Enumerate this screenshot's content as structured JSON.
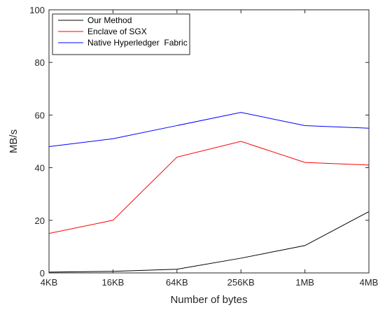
{
  "chart_data": {
    "type": "line",
    "categories": [
      "4KB",
      "16KB",
      "64KB",
      "256KB",
      "1MB",
      "4MB"
    ],
    "xlabel": "Number of bytes",
    "ylabel": "MB/s",
    "ylim": [
      0,
      100
    ],
    "yticks": [
      0,
      20,
      40,
      60,
      80,
      100
    ],
    "grid": false,
    "legend_position": "top-left",
    "series": [
      {
        "name": "Our Method",
        "color": "#000000",
        "values": [
          0.3,
          0.6,
          1.4,
          5.6,
          10.4,
          23.3
        ]
      },
      {
        "name": "Enclave of SGX",
        "color": "#ff0000",
        "values": [
          15.0,
          20.0,
          44.0,
          50.0,
          42.0,
          41.0
        ]
      },
      {
        "name": "Native Hyperledger  Fabric",
        "color": "#0000ff",
        "values": [
          48.0,
          51.0,
          56.0,
          61.0,
          56.0,
          55.0
        ]
      }
    ]
  }
}
